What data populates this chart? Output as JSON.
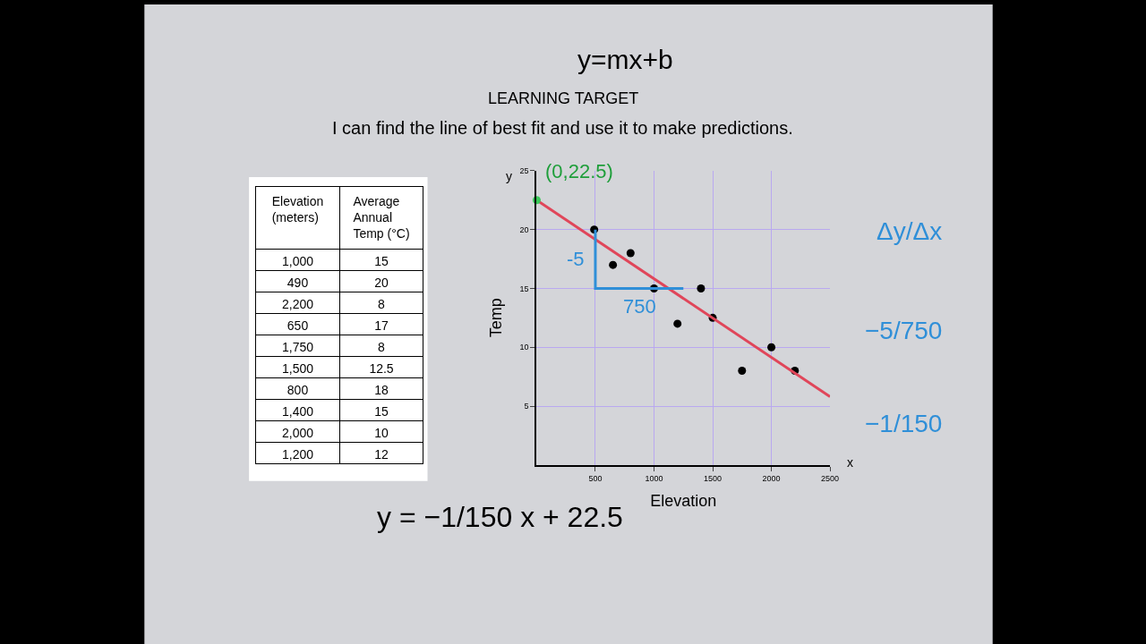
{
  "chart_data": [
    {
      "type": "other",
      "annotations": [
        "Elevation (meters)",
        "Average Annual Temp (°C)",
        "1,000",
        "15",
        "490",
        "20",
        "2,200",
        "8",
        "650",
        "17",
        "1,750",
        "8",
        "1,500",
        "12.5",
        "800",
        "18",
        "1,400",
        "15",
        "2,000",
        "10",
        "1,200",
        "12"
      ]
    },
    {
      "type": "scatter",
      "xlabel": "Elevation",
      "ylabel": "Temp",
      "series": [
        {
          "type": "scatter",
          "color": "#000000",
          "marker": "circle",
          "x": [
            1000,
            490,
            2200,
            650,
            1750,
            1500,
            800,
            1400,
            2000,
            1200
          ],
          "values": [
            15,
            20,
            8,
            17,
            8,
            12.5,
            18,
            15,
            10,
            12
          ]
        },
        {
          "type": "line",
          "color": "#e0465a",
          "marker": "none",
          "x": [
            0,
            2500
          ],
          "values": [
            22.5,
            5.8
          ]
        },
        {
          "type": "line",
          "color": "#2f8fd8",
          "marker": "none",
          "x": [
            500,
            500,
            1250
          ],
          "values": [
            20,
            15,
            15
          ]
        },
        {
          "type": "scatter",
          "color": "#3cc95a",
          "marker": "circle",
          "x": [
            0
          ],
          "values": [
            22.5
          ]
        }
      ],
      "xlim": [
        0,
        2500
      ],
      "ylim": [
        0,
        25
      ],
      "xticks": [
        500,
        1000,
        1500,
        2000,
        2500
      ],
      "yticks": [
        5,
        10,
        15,
        20,
        25
      ],
      "grid": true,
      "annotations": [
        {
          "text": "(0,22.5)",
          "x": 0,
          "y": 22.5
        },
        {
          "text": "-5",
          "x": 500,
          "y": 17.5
        },
        {
          "text": "750",
          "x": 875,
          "y": 15
        },
        "y=mx+b",
        "LEARNING TARGET",
        "I can find the line of best fit and use it to make predictions.",
        "Δy/Δx",
        "−5/750",
        "−1/150",
        "y = −1/150 x + 22.5",
        "x",
        "y"
      ]
    }
  ]
}
